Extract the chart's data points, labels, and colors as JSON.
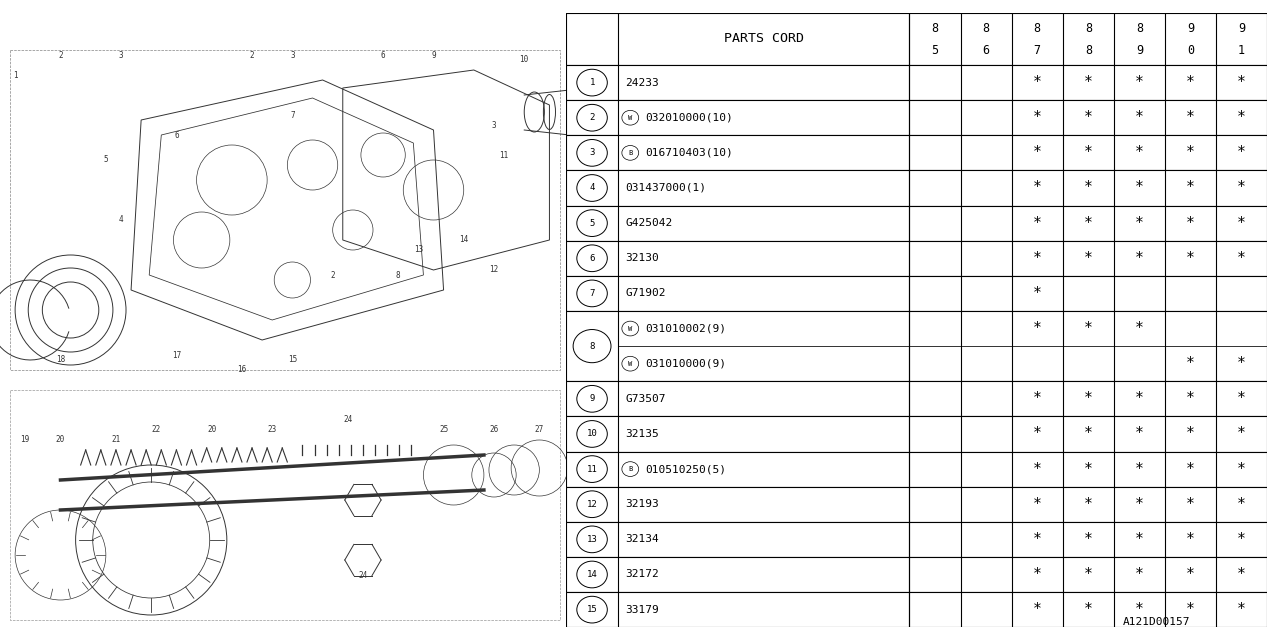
{
  "bg_color": "#ffffff",
  "diagram_color": "#333333",
  "header_label": "PARTS CORD",
  "year_columns": [
    "8\n5",
    "8\n6",
    "8\n7",
    "8\n8",
    "8\n9",
    "9\n0",
    "9\n1"
  ],
  "rows": [
    {
      "num": "1",
      "prefix": "",
      "code": "24233",
      "stars": [
        0,
        0,
        1,
        1,
        1,
        1,
        1
      ]
    },
    {
      "num": "2",
      "prefix": "W",
      "code": "032010000(10)",
      "stars": [
        0,
        0,
        1,
        1,
        1,
        1,
        1
      ]
    },
    {
      "num": "3",
      "prefix": "B",
      "code": "016710403(10)",
      "stars": [
        0,
        0,
        1,
        1,
        1,
        1,
        1
      ]
    },
    {
      "num": "4",
      "prefix": "",
      "code": "031437000(1)",
      "stars": [
        0,
        0,
        1,
        1,
        1,
        1,
        1
      ]
    },
    {
      "num": "5",
      "prefix": "",
      "code": "G425042",
      "stars": [
        0,
        0,
        1,
        1,
        1,
        1,
        1
      ]
    },
    {
      "num": "6",
      "prefix": "",
      "code": "32130",
      "stars": [
        0,
        0,
        1,
        1,
        1,
        1,
        1
      ]
    },
    {
      "num": "7",
      "prefix": "",
      "code": "G71902",
      "stars": [
        0,
        0,
        1,
        0,
        0,
        0,
        0
      ]
    },
    {
      "num": "8",
      "prefix": "W",
      "code": "031010002(9)",
      "stars": [
        0,
        0,
        1,
        1,
        1,
        0,
        0
      ],
      "subrow": true,
      "sub_prefix": "W",
      "sub_code": "031010000(9)",
      "sub_stars": [
        0,
        0,
        0,
        0,
        0,
        1,
        1
      ]
    },
    {
      "num": "9",
      "prefix": "",
      "code": "G73507",
      "stars": [
        0,
        0,
        1,
        1,
        1,
        1,
        1
      ]
    },
    {
      "num": "10",
      "prefix": "",
      "code": "32135",
      "stars": [
        0,
        0,
        1,
        1,
        1,
        1,
        1
      ]
    },
    {
      "num": "11",
      "prefix": "B",
      "code": "010510250(5)",
      "stars": [
        0,
        0,
        1,
        1,
        1,
        1,
        1
      ]
    },
    {
      "num": "12",
      "prefix": "",
      "code": "32193",
      "stars": [
        0,
        0,
        1,
        1,
        1,
        1,
        1
      ]
    },
    {
      "num": "13",
      "prefix": "",
      "code": "32134",
      "stars": [
        0,
        0,
        1,
        1,
        1,
        1,
        1
      ]
    },
    {
      "num": "14",
      "prefix": "",
      "code": "32172",
      "stars": [
        0,
        0,
        1,
        1,
        1,
        1,
        1
      ]
    },
    {
      "num": "15",
      "prefix": "",
      "code": "33179",
      "stars": [
        0,
        0,
        1,
        1,
        1,
        1,
        1
      ]
    }
  ],
  "watermark": "A121D00157",
  "font_size": 8.5,
  "header_font_size": 9.5
}
